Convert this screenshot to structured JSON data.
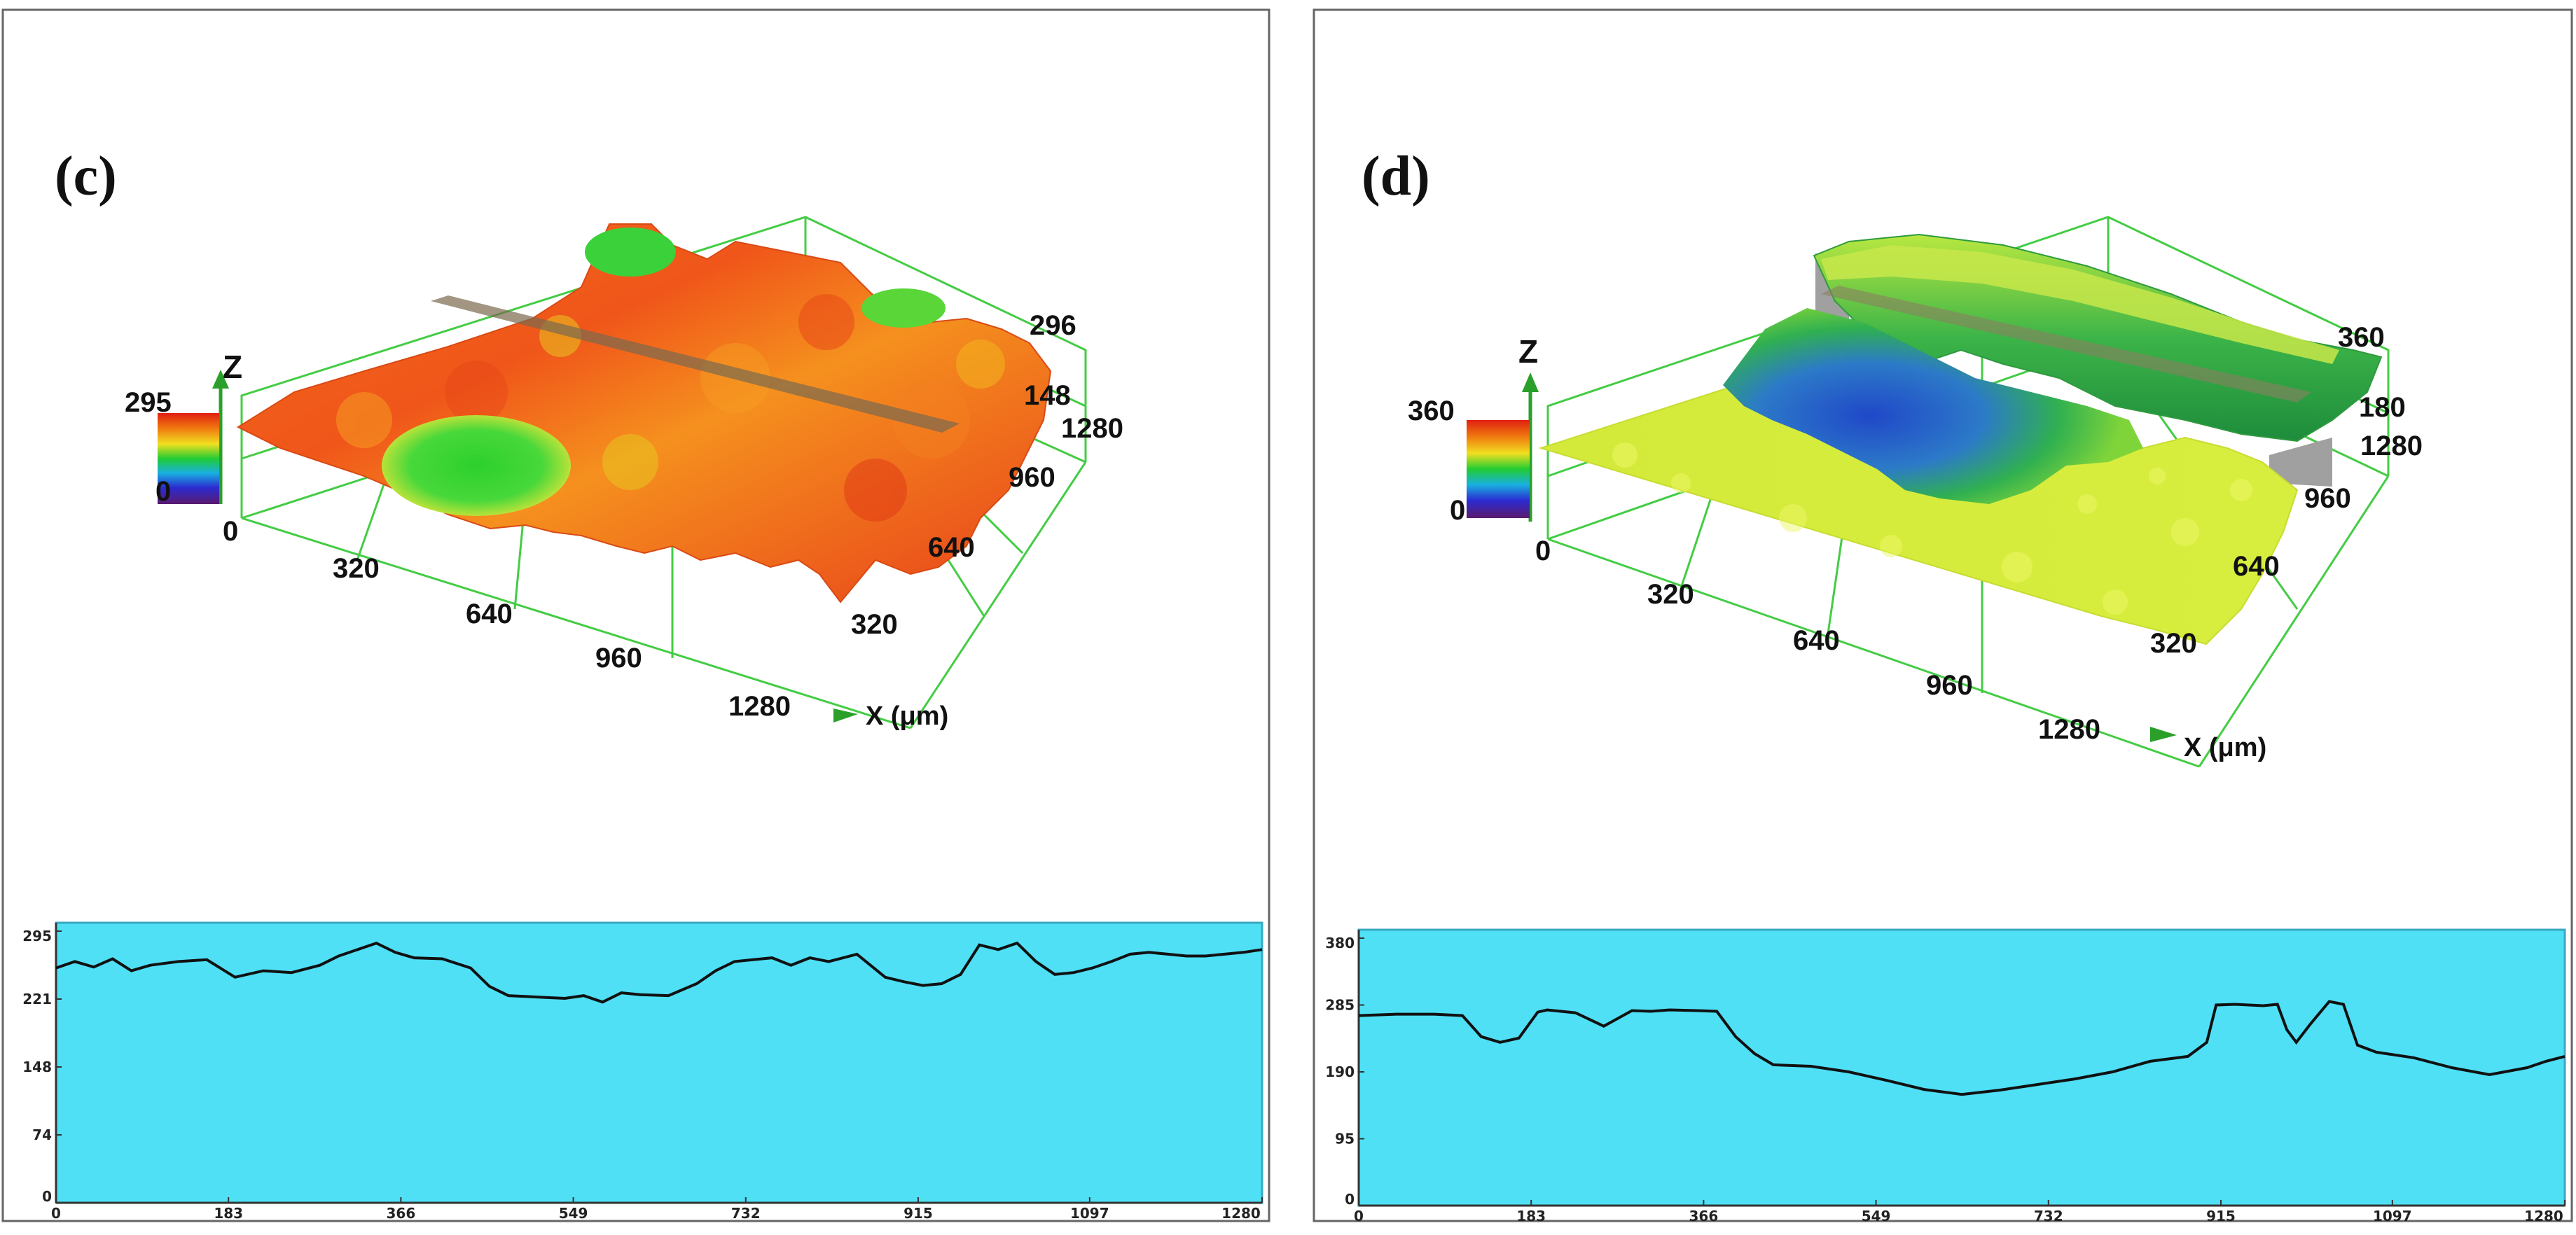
{
  "colors": {
    "profile_bg": "#4fe0f6",
    "profile_line": "#111111",
    "grid_green": "#44cc44",
    "panel_border": "#666666"
  },
  "chart_data": [
    {
      "type": "surface3d",
      "panel": "(c)",
      "axis_z_label": "Z",
      "x_unit_label": "X (μm)",
      "x_ticks": [
        "0",
        "320",
        "640",
        "960",
        "1280"
      ],
      "y_ticks": [
        "320",
        "640",
        "960",
        "1280"
      ],
      "z_ticks": [
        "148",
        "296"
      ],
      "colorbar_max": "295",
      "colorbar_min": "0",
      "colorbar_colors": [
        "#5a1a6e",
        "#2b2bd0",
        "#18b0e0",
        "#22cc33",
        "#f0e020",
        "#f08010",
        "#e02010"
      ],
      "surface_dominant_colors": [
        "#f05818",
        "#f58a1c",
        "#e8c420",
        "#3ad13a"
      ],
      "profile": {
        "type": "line",
        "xlim": [
          0,
          1280
        ],
        "ylim": [
          0,
          295
        ],
        "x_tick_labels": [
          "0",
          "183",
          "366",
          "549",
          "732",
          "915",
          "1097",
          "1280"
        ],
        "y_tick_labels": [
          "295",
          "221",
          "148",
          "74",
          "0"
        ],
        "x": [
          0,
          20,
          40,
          60,
          80,
          100,
          130,
          160,
          190,
          220,
          250,
          280,
          300,
          320,
          340,
          360,
          380,
          410,
          440,
          460,
          480,
          500,
          520,
          540,
          560,
          580,
          600,
          620,
          650,
          680,
          700,
          720,
          740,
          760,
          780,
          800,
          820,
          850,
          880,
          900,
          920,
          940,
          960,
          980,
          1000,
          1020,
          1040,
          1060,
          1080,
          1100,
          1120,
          1140,
          1160,
          1180,
          1200,
          1220,
          1240,
          1260,
          1280
        ],
        "y": [
          255,
          262,
          256,
          265,
          252,
          258,
          262,
          264,
          245,
          252,
          250,
          258,
          268,
          275,
          282,
          272,
          266,
          265,
          255,
          235,
          225,
          224,
          223,
          222,
          225,
          218,
          228,
          226,
          225,
          238,
          252,
          262,
          264,
          266,
          258,
          266,
          262,
          270,
          245,
          240,
          236,
          238,
          248,
          280,
          275,
          282,
          262,
          248,
          250,
          255,
          262,
          270,
          272,
          270,
          268,
          268,
          270,
          272,
          275
        ]
      }
    },
    {
      "type": "surface3d",
      "panel": "(d)",
      "axis_z_label": "Z",
      "x_unit_label": "X (μm)",
      "x_ticks": [
        "0",
        "320",
        "640",
        "960",
        "1280"
      ],
      "y_ticks": [
        "320",
        "640",
        "960",
        "1280"
      ],
      "z_ticks": [
        "180",
        "360"
      ],
      "colorbar_max": "360",
      "colorbar_min": "0",
      "colorbar_colors": [
        "#5a1a6e",
        "#2b2bd0",
        "#18b0e0",
        "#22cc33",
        "#f0e020",
        "#f08010",
        "#e02010"
      ],
      "surface_dominant_colors": [
        "#d8ec3c",
        "#8ed830",
        "#30b048",
        "#2858c8"
      ],
      "profile": {
        "type": "line",
        "xlim": [
          0,
          1280
        ],
        "ylim": [
          0,
          380
        ],
        "x_tick_labels": [
          "0",
          "183",
          "366",
          "549",
          "732",
          "915",
          "1097",
          "1280"
        ],
        "y_tick_labels": [
          "380",
          "285",
          "190",
          "95",
          "0"
        ],
        "x": [
          0,
          40,
          80,
          110,
          130,
          150,
          170,
          190,
          200,
          230,
          260,
          290,
          310,
          330,
          360,
          380,
          400,
          420,
          440,
          480,
          520,
          560,
          600,
          640,
          680,
          720,
          760,
          800,
          840,
          880,
          900,
          910,
          930,
          960,
          975,
          985,
          995,
          1010,
          1030,
          1045,
          1060,
          1080,
          1120,
          1160,
          1200,
          1240,
          1260,
          1280
        ],
        "y": [
          270,
          272,
          272,
          270,
          240,
          232,
          238,
          275,
          278,
          274,
          255,
          277,
          276,
          278,
          277,
          276,
          240,
          216,
          200,
          198,
          190,
          178,
          165,
          158,
          164,
          172,
          180,
          190,
          205,
          212,
          232,
          285,
          286,
          284,
          286,
          250,
          232,
          258,
          290,
          286,
          228,
          218,
          210,
          196,
          186,
          196,
          205,
          212
        ]
      }
    }
  ]
}
